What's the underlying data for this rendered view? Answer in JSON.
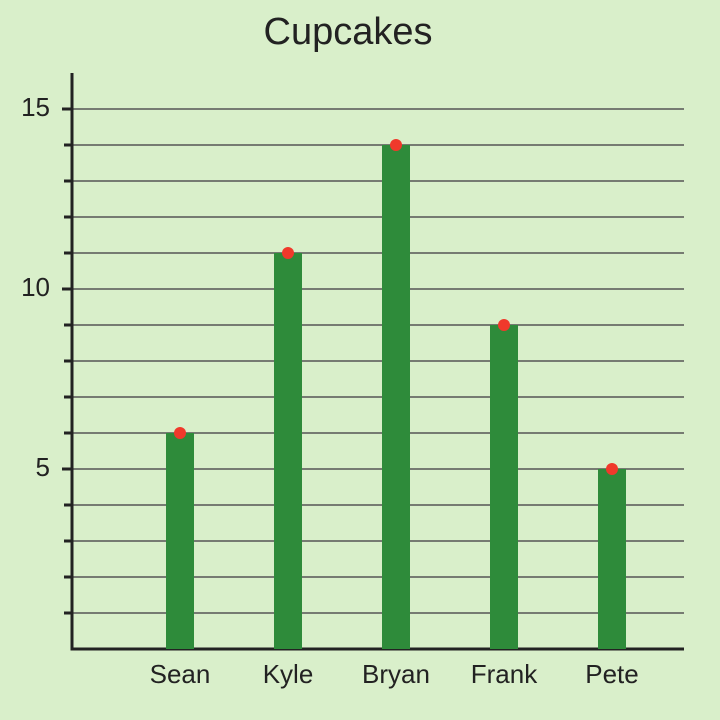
{
  "chart_data": {
    "type": "bar",
    "title": "Cupcakes",
    "categories": [
      "Sean",
      "Kyle",
      "Bryan",
      "Frank",
      "Pete"
    ],
    "values": [
      6,
      11,
      14,
      9,
      5
    ],
    "color": "#2e8b3a",
    "marker_color": "#f0392b",
    "ylim": [
      0,
      16
    ],
    "yticks": [
      5,
      10,
      15
    ],
    "yticks_minor": [
      1,
      2,
      3,
      4,
      5,
      6,
      7,
      8,
      9,
      10,
      11,
      12,
      13,
      14,
      15
    ],
    "grid": true
  }
}
